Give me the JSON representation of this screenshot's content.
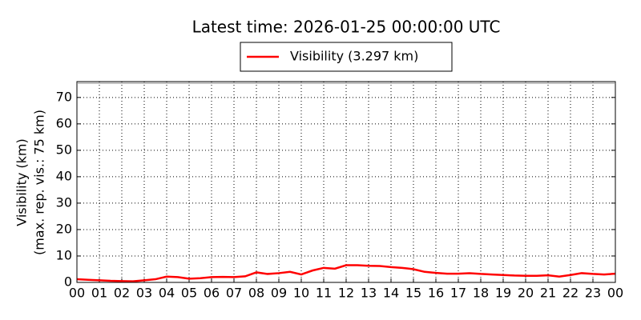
{
  "chart_data": {
    "type": "line",
    "title": "Latest time: 2026-01-25 00:00:00 UTC",
    "ylabel": [
      "Visibility (km)",
      "(max. rep. vis.: 75 km)"
    ],
    "x": [
      0,
      0.5,
      1,
      1.5,
      2,
      2.5,
      3,
      3.5,
      4,
      4.5,
      5,
      5.5,
      6,
      6.5,
      7,
      7.5,
      8,
      8.5,
      9,
      9.5,
      10,
      10.5,
      11,
      11.5,
      12,
      12.5,
      13,
      13.5,
      14,
      14.5,
      15,
      15.5,
      16,
      16.5,
      17,
      17.5,
      18,
      18.5,
      19,
      19.5,
      20,
      20.5,
      21,
      21.5,
      22,
      22.5,
      23,
      23.5,
      24
    ],
    "series": [
      {
        "name": "Visibility (3.297 km)",
        "color": "#ff0000",
        "values": [
          1.2,
          1.0,
          0.8,
          0.6,
          0.5,
          0.4,
          0.8,
          1.2,
          2.2,
          2.0,
          1.4,
          1.6,
          2.0,
          2.1,
          2.0,
          2.3,
          3.8,
          3.2,
          3.5,
          4.0,
          3.0,
          4.5,
          5.5,
          5.2,
          6.5,
          6.5,
          6.3,
          6.2,
          5.8,
          5.5,
          5.0,
          4.0,
          3.6,
          3.3,
          3.3,
          3.5,
          3.2,
          3.0,
          2.8,
          2.6,
          2.5,
          2.5,
          2.7,
          2.2,
          2.8,
          3.5,
          3.2,
          3.0,
          3.3
        ]
      }
    ],
    "xlim": [
      0,
      24
    ],
    "xticks": [
      {
        "value": 0,
        "label": "00"
      },
      {
        "value": 1,
        "label": "01"
      },
      {
        "value": 2,
        "label": "02"
      },
      {
        "value": 3,
        "label": "03"
      },
      {
        "value": 4,
        "label": "04"
      },
      {
        "value": 5,
        "label": "05"
      },
      {
        "value": 6,
        "label": "06"
      },
      {
        "value": 7,
        "label": "07"
      },
      {
        "value": 8,
        "label": "08"
      },
      {
        "value": 9,
        "label": "09"
      },
      10,
      11,
      12,
      13,
      14,
      15,
      16,
      17,
      18,
      19,
      20,
      21,
      22,
      23,
      {
        "value": 24,
        "label": "00"
      }
    ],
    "ylim": [
      0,
      76
    ],
    "yticks": [
      0,
      10,
      20,
      30,
      40,
      50,
      60,
      70
    ],
    "grid": true
  }
}
